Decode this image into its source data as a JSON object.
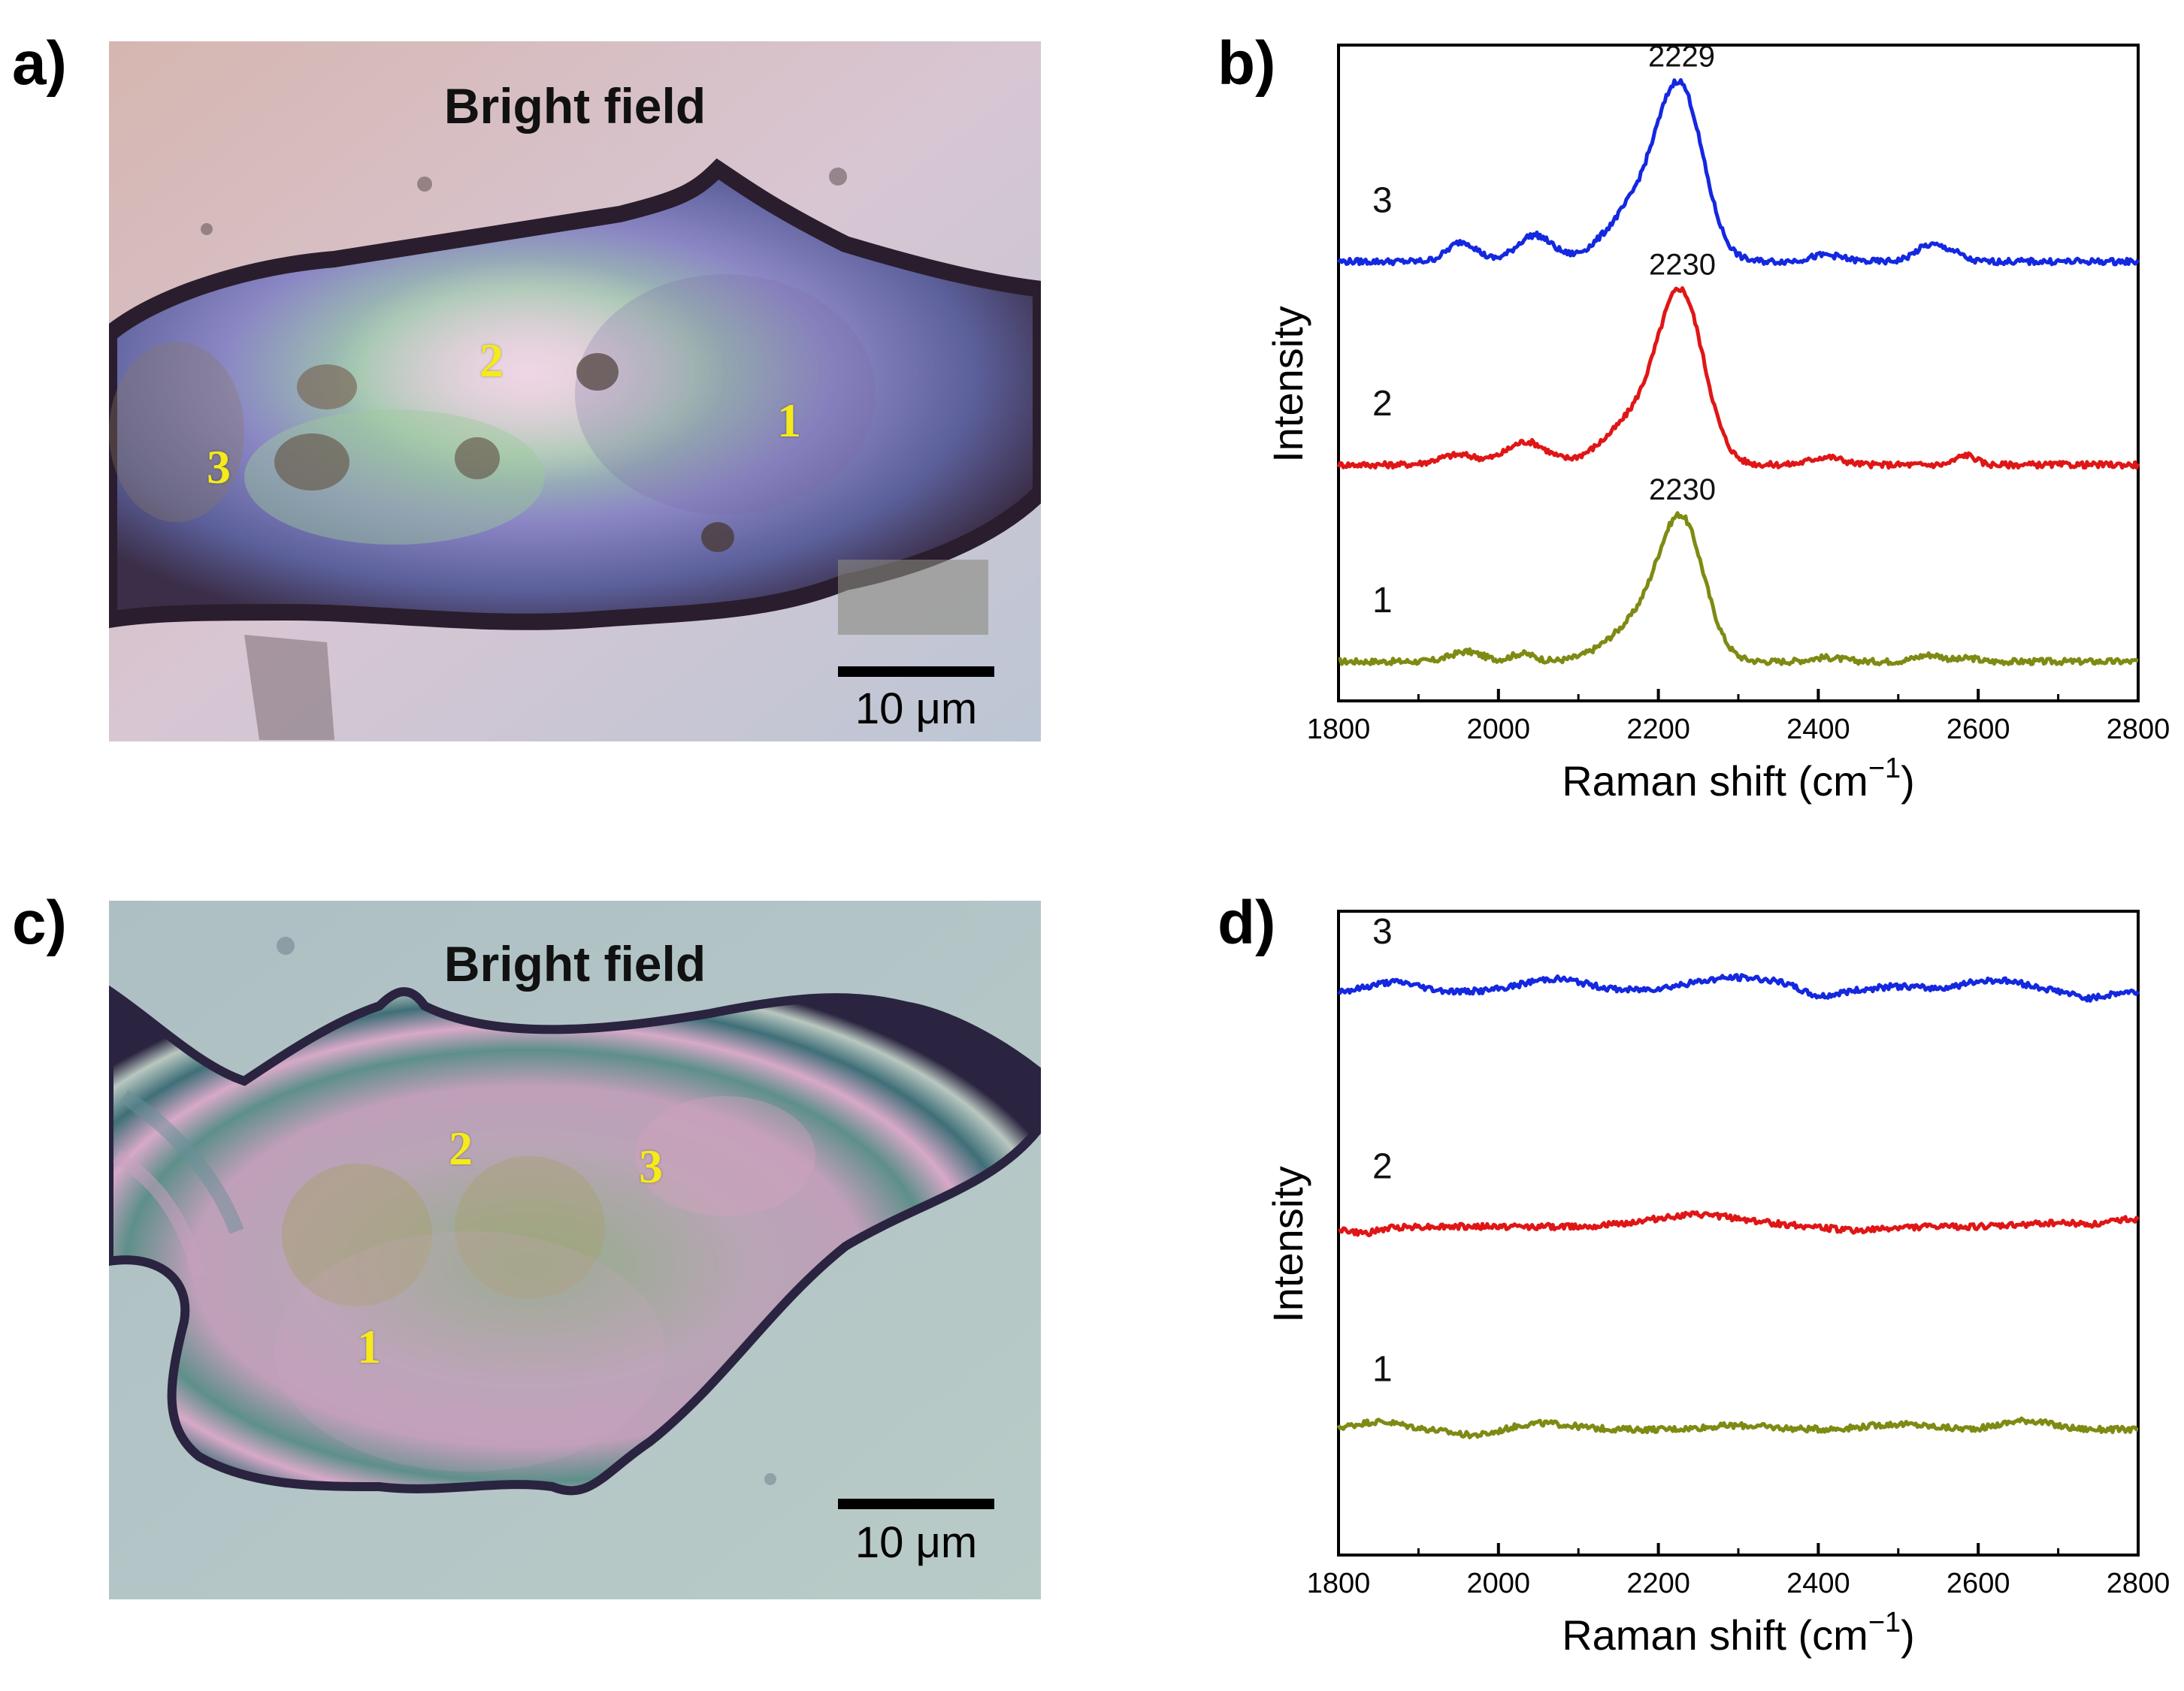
{
  "panels": {
    "a": {
      "letter": "a)",
      "title": "Bright field",
      "scalebar_label": "10 μm",
      "points": [
        {
          "id": "1",
          "label": "1"
        },
        {
          "id": "2",
          "label": "2"
        },
        {
          "id": "3",
          "label": "3"
        }
      ]
    },
    "b": {
      "letter": "b)"
    },
    "c": {
      "letter": "c)",
      "title": "Bright field",
      "scalebar_label": "10 μm",
      "points": [
        {
          "id": "1",
          "label": "1"
        },
        {
          "id": "2",
          "label": "2"
        },
        {
          "id": "3",
          "label": "3"
        }
      ]
    },
    "d": {
      "letter": "d)"
    }
  },
  "chart_data": [
    {
      "panel": "b",
      "type": "line",
      "title": "",
      "xlabel": "Raman shift (cm",
      "xlabel_sup": "−1",
      "xlabel_close": ")",
      "ylabel": "Intensity",
      "xlim": [
        1800,
        2800
      ],
      "ylim": [
        0,
        10
      ],
      "xticks": [
        1800,
        2000,
        2200,
        2400,
        2600,
        2800
      ],
      "y_ticks_shown": false,
      "series": [
        {
          "name": "1",
          "color": "#7f8a13",
          "baseline": 0.6,
          "features": [
            {
              "x": 1960,
              "h": 0.15,
              "w": 20
            },
            {
              "x": 2030,
              "h": 0.12,
              "w": 15
            },
            {
              "x": 2180,
              "h": 0.6,
              "w": 40
            },
            {
              "x": 2230,
              "h": 1.95,
              "w": 28
            },
            {
              "x": 2410,
              "h": 0.06,
              "w": 20
            },
            {
              "x": 2540,
              "h": 0.1,
              "w": 18
            },
            {
              "x": 2590,
              "h": 0.05,
              "w": 10
            }
          ],
          "peak_label": {
            "x": 2230,
            "text": "2230"
          }
        },
        {
          "name": "2",
          "color": "#e01616",
          "baseline": 3.6,
          "features": [
            {
              "x": 1950,
              "h": 0.15,
              "w": 25
            },
            {
              "x": 2035,
              "h": 0.35,
              "w": 25
            },
            {
              "x": 2180,
              "h": 0.75,
              "w": 42
            },
            {
              "x": 2230,
              "h": 2.3,
              "w": 28
            },
            {
              "x": 2410,
              "h": 0.12,
              "w": 20
            },
            {
              "x": 2585,
              "h": 0.15,
              "w": 12
            }
          ],
          "peak_label": {
            "x": 2230,
            "text": "2230"
          }
        },
        {
          "name": "3",
          "color": "#1428e0",
          "baseline": 6.7,
          "features": [
            {
              "x": 1955,
              "h": 0.3,
              "w": 18
            },
            {
              "x": 2045,
              "h": 0.4,
              "w": 22
            },
            {
              "x": 2180,
              "h": 0.9,
              "w": 40
            },
            {
              "x": 2229,
              "h": 2.3,
              "w": 28
            },
            {
              "x": 2410,
              "h": 0.1,
              "w": 20
            },
            {
              "x": 2540,
              "h": 0.25,
              "w": 18
            },
            {
              "x": 2570,
              "h": 0.1,
              "w": 12
            }
          ],
          "peak_label": {
            "x": 2229,
            "text": "2229"
          }
        }
      ]
    },
    {
      "panel": "d",
      "type": "line",
      "title": "",
      "xlabel": "Raman shift (cm",
      "xlabel_sup": "−1",
      "xlabel_close": ")",
      "ylabel": "Intensity",
      "xlim": [
        1800,
        2800
      ],
      "ylim": [
        0,
        10
      ],
      "xticks": [
        1800,
        2000,
        2200,
        2400,
        2600,
        2800
      ],
      "y_ticks_shown": false,
      "series": [
        {
          "name": "1",
          "color": "#7f8a13",
          "baseline": 1.95,
          "features": [
            {
              "x": 1850,
              "h": 0.12,
              "w": 30
            },
            {
              "x": 1975,
              "h": -0.1,
              "w": 30
            },
            {
              "x": 2050,
              "h": 0.1,
              "w": 40
            },
            {
              "x": 2300,
              "h": 0.06,
              "w": 40
            },
            {
              "x": 2500,
              "h": 0.08,
              "w": 40
            },
            {
              "x": 2660,
              "h": 0.14,
              "w": 30
            }
          ]
        },
        {
          "name": "2",
          "color": "#e01616",
          "baseline": 5.1,
          "features": [
            {
              "x": 1830,
              "h": -0.1,
              "w": 20
            },
            {
              "x": 2250,
              "h": 0.18,
              "w": 60
            },
            {
              "x": 2450,
              "h": -0.06,
              "w": 30
            },
            {
              "x": 2700,
              "h": 0.06,
              "w": 40
            },
            {
              "x": 2790,
              "h": 0.12,
              "w": 20
            }
          ]
        },
        {
          "name": "3",
          "color": "#1428e0",
          "baseline": 8.75,
          "features": [
            {
              "x": 1870,
              "h": 0.15,
              "w": 30
            },
            {
              "x": 2070,
              "h": 0.2,
              "w": 40
            },
            {
              "x": 2300,
              "h": 0.22,
              "w": 60
            },
            {
              "x": 2400,
              "h": -0.12,
              "w": 20
            },
            {
              "x": 2500,
              "h": 0.08,
              "w": 30
            },
            {
              "x": 2620,
              "h": 0.18,
              "w": 40
            },
            {
              "x": 2740,
              "h": -0.1,
              "w": 20
            }
          ]
        }
      ]
    }
  ]
}
